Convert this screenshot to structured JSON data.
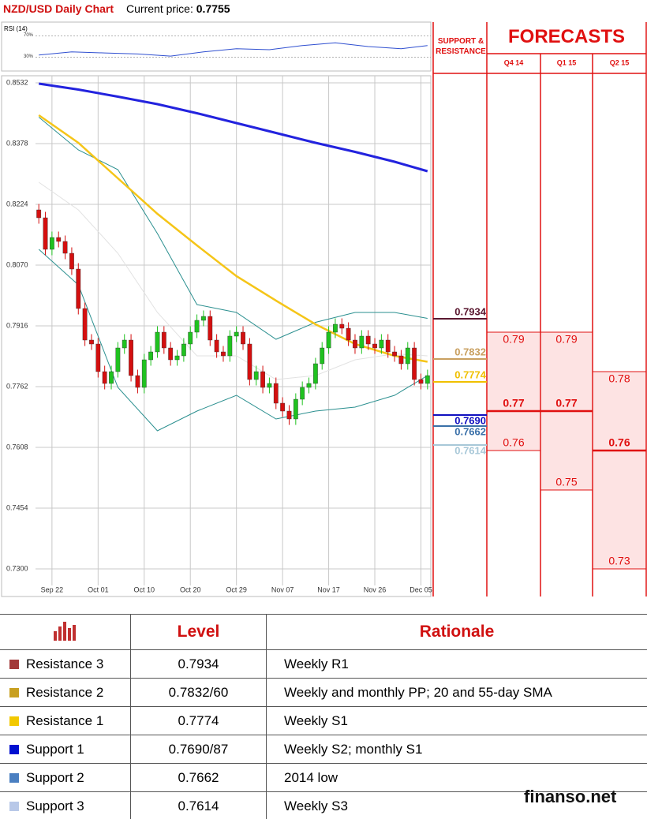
{
  "header": {
    "title": "NZD/USD Daily Chart",
    "price_label": "Current price:",
    "price": 0.7755
  },
  "chart_data": {
    "type": "candlestick",
    "categories": [
      null,
      null,
      "Sep 22",
      null,
      null,
      null,
      null,
      null,
      null,
      "Oct 01",
      null,
      null,
      null,
      null,
      null,
      null,
      "Oct 10",
      null,
      null,
      null,
      null,
      null,
      null,
      "Oct 20",
      null,
      null,
      null,
      null,
      null,
      null,
      "Oct 29",
      null,
      null,
      null,
      null,
      null,
      null,
      "Nov 07",
      null,
      null,
      null,
      null,
      null,
      null,
      "Nov 17",
      null,
      null,
      null,
      null,
      null,
      null,
      "Nov 26",
      null,
      null,
      null,
      null,
      null,
      null,
      "Dec 05",
      null
    ],
    "open": [
      0.821,
      0.819,
      0.811,
      0.814,
      0.813,
      0.81,
      0.806,
      0.796,
      0.788,
      0.787,
      0.78,
      0.777,
      0.78,
      0.786,
      0.788,
      0.779,
      0.776,
      0.783,
      0.785,
      0.79,
      0.786,
      0.783,
      0.784,
      0.787,
      0.79,
      0.793,
      0.794,
      0.788,
      0.785,
      0.784,
      0.789,
      0.79,
      0.787,
      0.778,
      0.78,
      0.776,
      0.777,
      0.772,
      0.77,
      0.768,
      0.773,
      0.776,
      0.777,
      0.782,
      0.786,
      0.79,
      0.792,
      0.791,
      0.788,
      0.786,
      0.789,
      0.787,
      0.786,
      0.788,
      0.785,
      0.784,
      0.782,
      0.786,
      0.778,
      0.777
    ],
    "high": [
      0.8225,
      0.8205,
      0.8155,
      0.8155,
      0.8145,
      0.8115,
      0.8075,
      0.7975,
      0.7895,
      0.7885,
      0.7815,
      0.7815,
      0.7875,
      0.7895,
      0.7895,
      0.7805,
      0.7845,
      0.7865,
      0.7915,
      0.7915,
      0.7875,
      0.7855,
      0.7885,
      0.7915,
      0.7945,
      0.7955,
      0.7955,
      0.7895,
      0.7865,
      0.7905,
      0.7915,
      0.7915,
      0.7885,
      0.7815,
      0.7815,
      0.7785,
      0.7785,
      0.7735,
      0.7715,
      0.7745,
      0.7775,
      0.7785,
      0.7835,
      0.7875,
      0.7915,
      0.7935,
      0.7935,
      0.7925,
      0.7895,
      0.7905,
      0.7905,
      0.7885,
      0.7895,
      0.7895,
      0.7865,
      0.7855,
      0.7875,
      0.7875,
      0.7795,
      0.7805
    ],
    "low": [
      0.8175,
      0.8095,
      0.8095,
      0.8115,
      0.8085,
      0.8045,
      0.7945,
      0.7865,
      0.7855,
      0.7785,
      0.7755,
      0.7755,
      0.7785,
      0.7845,
      0.7775,
      0.7745,
      0.7745,
      0.7815,
      0.7835,
      0.7845,
      0.7815,
      0.7815,
      0.7825,
      0.7855,
      0.7885,
      0.7915,
      0.7865,
      0.7835,
      0.7825,
      0.7825,
      0.7875,
      0.7855,
      0.7765,
      0.7765,
      0.7745,
      0.7745,
      0.7705,
      0.7685,
      0.7665,
      0.7665,
      0.7715,
      0.7745,
      0.7755,
      0.7805,
      0.7845,
      0.7885,
      0.7895,
      0.7865,
      0.7845,
      0.7845,
      0.7855,
      0.7845,
      0.7845,
      0.7835,
      0.7825,
      0.7805,
      0.7805,
      0.7765,
      0.7755,
      0.7755
    ],
    "close": [
      0.819,
      0.811,
      0.814,
      0.813,
      0.81,
      0.806,
      0.796,
      0.788,
      0.787,
      0.78,
      0.777,
      0.78,
      0.786,
      0.788,
      0.779,
      0.776,
      0.783,
      0.785,
      0.79,
      0.786,
      0.783,
      0.784,
      0.787,
      0.79,
      0.793,
      0.794,
      0.788,
      0.785,
      0.784,
      0.789,
      0.79,
      0.787,
      0.778,
      0.78,
      0.776,
      0.777,
      0.772,
      0.77,
      0.768,
      0.773,
      0.776,
      0.777,
      0.782,
      0.786,
      0.79,
      0.792,
      0.791,
      0.788,
      0.786,
      0.789,
      0.787,
      0.786,
      0.788,
      0.785,
      0.784,
      0.782,
      0.786,
      0.778,
      0.777,
      0.779
    ],
    "up_color": "#1fc21f",
    "down_color": "#d40f0f",
    "ylim": [
      0.723,
      0.855
    ],
    "yticks": [
      0.8532,
      0.8378,
      0.8224,
      {
        "value": 0.807,
        "label": "0.8070"
      },
      0.7916,
      0.7762,
      0.7608,
      0.7454,
      {
        "value": 0.73,
        "label": "0.7300"
      }
    ],
    "grid": true,
    "overlays": [
      {
        "x": [
          0,
          6,
          12,
          18,
          24,
          30,
          36,
          42,
          48,
          54,
          59
        ],
        "values": [
          0.828,
          0.821,
          0.81,
          0.795,
          0.784,
          0.784,
          0.778,
          0.779,
          0.783,
          0.7845,
          0.784
        ],
        "color": "#e2e2e2",
        "width": 1
      },
      {
        "x": [
          0,
          6,
          12,
          18,
          24,
          30,
          36,
          42,
          48,
          54,
          59
        ],
        "values": [
          0.8445,
          0.8362,
          0.8312,
          0.815,
          0.797,
          0.795,
          0.7882,
          0.7925,
          0.795,
          0.795,
          0.7935
        ],
        "color": "#2a8f8f",
        "width": 1
      },
      {
        "x": [
          0,
          6,
          12,
          18,
          24,
          30,
          36,
          42,
          48,
          54,
          59
        ],
        "values": [
          0.811,
          0.802,
          0.776,
          0.765,
          0.77,
          0.774,
          0.768,
          0.77,
          0.771,
          0.774,
          0.779
        ],
        "color": "#2a8f8f",
        "width": 1
      },
      {
        "x": [
          0,
          6,
          12,
          18,
          24,
          30,
          36,
          42,
          48,
          54,
          59
        ],
        "values": [
          0.845,
          0.838,
          0.829,
          0.82,
          0.812,
          0.8042,
          0.798,
          0.792,
          0.787,
          0.784,
          0.7825
        ],
        "color": "#f5c518",
        "width": 2.5
      },
      {
        "x": [
          0,
          6,
          12,
          18,
          24,
          30,
          36,
          42,
          48,
          54,
          59
        ],
        "values": [
          0.853,
          0.8515,
          0.8497,
          0.8478,
          0.8455,
          0.843,
          0.8405,
          0.838,
          0.8357,
          0.8332,
          0.8308
        ],
        "color": "#2323de",
        "width": 3
      }
    ],
    "rsi": {
      "label": "RSI (14)",
      "x": [
        0,
        5,
        10,
        15,
        20,
        25,
        30,
        35,
        40,
        45,
        50,
        55,
        59
      ],
      "values": [
        34,
        40,
        38,
        36,
        32,
        40,
        46,
        44,
        52,
        57,
        50,
        46,
        52
      ],
      "ylim": [
        7,
        93
      ],
      "yticks": [
        {
          "value": 70,
          "label": "70%"
        },
        {
          "value": 30,
          "label": "30%"
        }
      ],
      "color": "#2f4fd0"
    },
    "sr_title": "SUPPORT & RESISTANCE",
    "levels": [
      {
        "value": 0.7934,
        "color": "#5a1830"
      },
      {
        "value": {
          "value": 0.7832
        },
        "color": "#c9a060"
      },
      {
        "value": 0.7774,
        "color": "#f0c000"
      },
      {
        "value": {
          "value": 0.769,
          "label": "0.7690"
        },
        "color": "#1010c0"
      },
      {
        "value": 0.7662,
        "color": "#3a70a8"
      },
      {
        "value": 0.7614,
        "color": "#a8c8d8"
      }
    ],
    "forecast_title": "FORECASTS",
    "forecasts": [
      {
        "label": "Q4 14",
        "high": 0.79,
        "median": 0.77,
        "low": 0.76
      },
      {
        "label": "Q1 15",
        "high": 0.79,
        "median": 0.77,
        "low": 0.75
      },
      {
        "label": "Q2 15",
        "high": 0.78,
        "median": 0.76,
        "low": 0.73
      }
    ]
  },
  "table": {
    "header": [
      "Level",
      "Rationale"
    ],
    "rows": [
      {
        "color": "#a33a3a",
        "name": "Resistance 3",
        "level": "0.7934",
        "rationale": "Weekly R1"
      },
      {
        "color": "#c8a020",
        "name": "Resistance 2",
        "level": "0.7832/60",
        "rationale": "Weekly and monthly PP; 20 and 55-day SMA"
      },
      {
        "color": "#f2c800",
        "name": "Resistance 1",
        "level": "0.7774",
        "rationale": "Weekly S1"
      },
      {
        "color": "#0010d0",
        "name": "Support 1",
        "level": "0.7690/87",
        "rationale": "Weekly S2; monthly S1"
      },
      {
        "color": "#4a7fc1",
        "name": "Support 2",
        "level": "0.7662",
        "rationale": "2014 low"
      },
      {
        "color": "#b8c8e8",
        "name": "Support 3",
        "level": "0.7614",
        "rationale": "Weekly S3"
      }
    ]
  },
  "watermark": "finanso.net"
}
